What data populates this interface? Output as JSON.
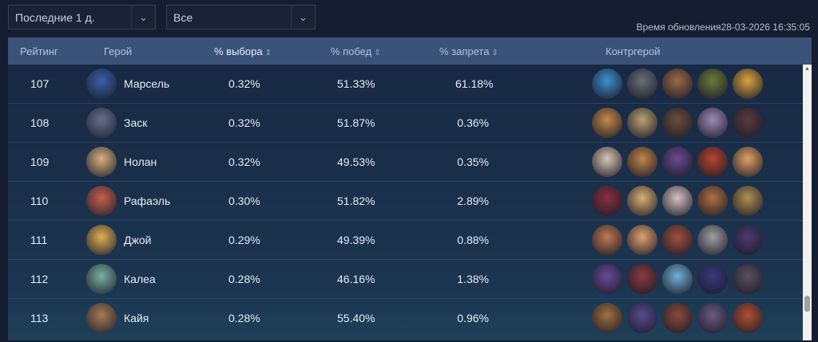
{
  "filters": {
    "period": "Последние 1 д.",
    "role": "Все"
  },
  "update": {
    "label": "Время обновления",
    "value": "28-03-2026 16:35:05"
  },
  "headers": {
    "rank": "Рейтинг",
    "hero": "Герой",
    "pick": "% выбора",
    "win": "% побед",
    "ban": "% запрета",
    "counter": "Контргерой"
  },
  "rows": [
    {
      "rank": "107",
      "hero": "Марсель",
      "pick": "0.32%",
      "win": "51.33%",
      "ban": "61.18%",
      "color": "#3a5fa8",
      "counters": [
        "#3d8fd0",
        "#6a6f78",
        "#9b6a48",
        "#6b7a3a",
        "#d9a440"
      ]
    },
    {
      "rank": "108",
      "hero": "Заск",
      "pick": "0.32%",
      "win": "51.87%",
      "ban": "0.36%",
      "color": "#6a6f8c",
      "counters": [
        "#c58a4a",
        "#b8a070",
        "#6d4d3a",
        "#a08ab8",
        "#5a3a40"
      ]
    },
    {
      "rank": "109",
      "hero": "Нолан",
      "pick": "0.32%",
      "win": "49.53%",
      "ban": "0.35%",
      "color": "#d8b07a",
      "counters": [
        "#d9c8b0",
        "#c0864a",
        "#6a4a90",
        "#b8452e",
        "#e0a060"
      ]
    },
    {
      "rank": "110",
      "hero": "Рафаэль",
      "pick": "0.30%",
      "win": "51.82%",
      "ban": "2.89%",
      "color": "#c8604a",
      "counters": [
        "#8a3040",
        "#d8b070",
        "#d8c0c0",
        "#b07040",
        "#b09050"
      ]
    },
    {
      "rank": "111",
      "hero": "Джой",
      "pick": "0.29%",
      "win": "49.39%",
      "ban": "0.88%",
      "color": "#e0b050",
      "counters": [
        "#c07a50",
        "#e0a070",
        "#a05040",
        "#a0a0a0",
        "#4a3a70"
      ]
    },
    {
      "rank": "112",
      "hero": "Калеа",
      "pick": "0.28%",
      "win": "46.16%",
      "ban": "1.38%",
      "color": "#7ab0a0",
      "counters": [
        "#6a4a98",
        "#8a3a40",
        "#70b0d8",
        "#3a3a80",
        "#5a5060"
      ]
    },
    {
      "rank": "113",
      "hero": "Кайя",
      "pick": "0.28%",
      "win": "55.40%",
      "ban": "0.96%",
      "color": "#a87a50",
      "counters": [
        "#a07040",
        "#5a4a90",
        "#8a4a3a",
        "#6a5a80",
        "#b05030"
      ]
    }
  ]
}
